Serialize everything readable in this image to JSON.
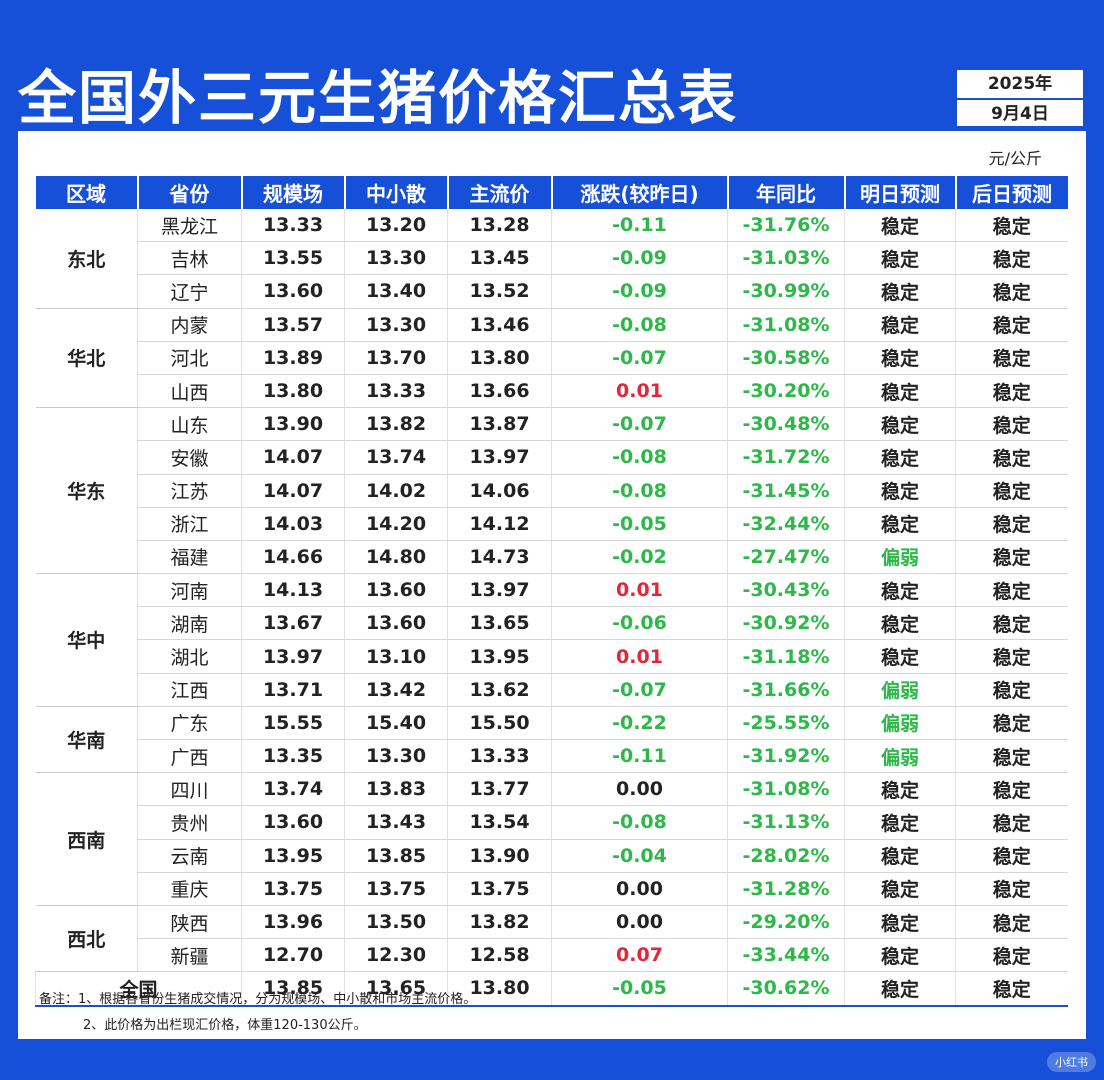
{
  "title": "全国外三元生猪价格汇总表",
  "date": {
    "year": "2025年",
    "day": "9月4日"
  },
  "unit": "元/公斤",
  "headers": [
    "区域",
    "省份",
    "规模场",
    "中小散",
    "主流价",
    "涨跌(较昨日)",
    "年同比",
    "明日预测",
    "后日预测"
  ],
  "regions": [
    {
      "name": "东北",
      "rows": [
        {
          "province": "黑龙江",
          "large": "13.33",
          "small": "13.20",
          "main": "13.28",
          "change": "-0.11",
          "yoy": "-31.76%",
          "tomorrow": "稳定",
          "after": "稳定"
        },
        {
          "province": "吉林",
          "large": "13.55",
          "small": "13.30",
          "main": "13.45",
          "change": "-0.09",
          "yoy": "-31.03%",
          "tomorrow": "稳定",
          "after": "稳定"
        },
        {
          "province": "辽宁",
          "large": "13.60",
          "small": "13.40",
          "main": "13.52",
          "change": "-0.09",
          "yoy": "-30.99%",
          "tomorrow": "稳定",
          "after": "稳定"
        }
      ]
    },
    {
      "name": "华北",
      "rows": [
        {
          "province": "内蒙",
          "large": "13.57",
          "small": "13.30",
          "main": "13.46",
          "change": "-0.08",
          "yoy": "-31.08%",
          "tomorrow": "稳定",
          "after": "稳定"
        },
        {
          "province": "河北",
          "large": "13.89",
          "small": "13.70",
          "main": "13.80",
          "change": "-0.07",
          "yoy": "-30.58%",
          "tomorrow": "稳定",
          "after": "稳定"
        },
        {
          "province": "山西",
          "large": "13.80",
          "small": "13.33",
          "main": "13.66",
          "change": "0.01",
          "yoy": "-30.20%",
          "tomorrow": "稳定",
          "after": "稳定"
        }
      ]
    },
    {
      "name": "华东",
      "rows": [
        {
          "province": "山东",
          "large": "13.90",
          "small": "13.82",
          "main": "13.87",
          "change": "-0.07",
          "yoy": "-30.48%",
          "tomorrow": "稳定",
          "after": "稳定"
        },
        {
          "province": "安徽",
          "large": "14.07",
          "small": "13.74",
          "main": "13.97",
          "change": "-0.08",
          "yoy": "-31.72%",
          "tomorrow": "稳定",
          "after": "稳定"
        },
        {
          "province": "江苏",
          "large": "14.07",
          "small": "14.02",
          "main": "14.06",
          "change": "-0.08",
          "yoy": "-31.45%",
          "tomorrow": "稳定",
          "after": "稳定"
        },
        {
          "province": "浙江",
          "large": "14.03",
          "small": "14.20",
          "main": "14.12",
          "change": "-0.05",
          "yoy": "-32.44%",
          "tomorrow": "稳定",
          "after": "稳定"
        },
        {
          "province": "福建",
          "large": "14.66",
          "small": "14.80",
          "main": "14.73",
          "change": "-0.02",
          "yoy": "-27.47%",
          "tomorrow": "偏弱",
          "after": "稳定"
        }
      ]
    },
    {
      "name": "华中",
      "rows": [
        {
          "province": "河南",
          "large": "14.13",
          "small": "13.60",
          "main": "13.97",
          "change": "0.01",
          "yoy": "-30.43%",
          "tomorrow": "稳定",
          "after": "稳定"
        },
        {
          "province": "湖南",
          "large": "13.67",
          "small": "13.60",
          "main": "13.65",
          "change": "-0.06",
          "yoy": "-30.92%",
          "tomorrow": "稳定",
          "after": "稳定"
        },
        {
          "province": "湖北",
          "large": "13.97",
          "small": "13.10",
          "main": "13.95",
          "change": "0.01",
          "yoy": "-31.18%",
          "tomorrow": "稳定",
          "after": "稳定"
        },
        {
          "province": "江西",
          "large": "13.71",
          "small": "13.42",
          "main": "13.62",
          "change": "-0.07",
          "yoy": "-31.66%",
          "tomorrow": "偏弱",
          "after": "稳定"
        }
      ]
    },
    {
      "name": "华南",
      "rows": [
        {
          "province": "广东",
          "large": "15.55",
          "small": "15.40",
          "main": "15.50",
          "change": "-0.22",
          "yoy": "-25.55%",
          "tomorrow": "偏弱",
          "after": "稳定"
        },
        {
          "province": "广西",
          "large": "13.35",
          "small": "13.30",
          "main": "13.33",
          "change": "-0.11",
          "yoy": "-31.92%",
          "tomorrow": "偏弱",
          "after": "稳定"
        }
      ]
    },
    {
      "name": "西南",
      "rows": [
        {
          "province": "四川",
          "large": "13.74",
          "small": "13.83",
          "main": "13.77",
          "change": "0.00",
          "yoy": "-31.08%",
          "tomorrow": "稳定",
          "after": "稳定"
        },
        {
          "province": "贵州",
          "large": "13.60",
          "small": "13.43",
          "main": "13.54",
          "change": "-0.08",
          "yoy": "-31.13%",
          "tomorrow": "稳定",
          "after": "稳定"
        },
        {
          "province": "云南",
          "large": "13.95",
          "small": "13.85",
          "main": "13.90",
          "change": "-0.04",
          "yoy": "-28.02%",
          "tomorrow": "稳定",
          "after": "稳定"
        },
        {
          "province": "重庆",
          "large": "13.75",
          "small": "13.75",
          "main": "13.75",
          "change": "0.00",
          "yoy": "-31.28%",
          "tomorrow": "稳定",
          "after": "稳定"
        }
      ]
    },
    {
      "name": "西北",
      "rows": [
        {
          "province": "陕西",
          "large": "13.96",
          "small": "13.50",
          "main": "13.82",
          "change": "0.00",
          "yoy": "-29.20%",
          "tomorrow": "稳定",
          "after": "稳定"
        },
        {
          "province": "新疆",
          "large": "12.70",
          "small": "12.30",
          "main": "12.58",
          "change": "0.07",
          "yoy": "-33.44%",
          "tomorrow": "稳定",
          "after": "稳定"
        }
      ]
    }
  ],
  "national": {
    "label": "全国",
    "large": "13.85",
    "small": "13.65",
    "main": "13.80",
    "change": "-0.05",
    "yoy": "-30.62%",
    "tomorrow": "稳定",
    "after": "稳定"
  },
  "notes": [
    "备注：1、根据各省份生猪成交情况，分为规模场、中小散和市场主流价格。",
    "2、此价格为出栏现汇价格，体重120-130公斤。"
  ],
  "watermark": "小红书",
  "colors": {
    "background": "#1650d8",
    "header": "#1650d8",
    "down": "#2eb84a",
    "up": "#e0283a",
    "weak": "#2eb84a"
  }
}
